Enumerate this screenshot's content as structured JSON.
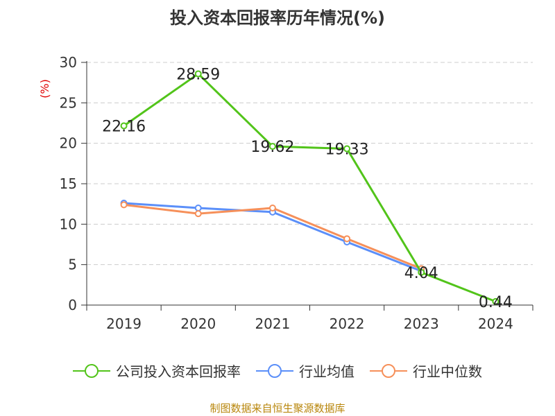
{
  "chart_data": {
    "type": "line",
    "title": "投入资本回报率历年情况(%)",
    "ylabel": "(%)",
    "xlabel": "",
    "categories": [
      "2019",
      "2020",
      "2021",
      "2022",
      "2023",
      "2024"
    ],
    "ylim": [
      0,
      30
    ],
    "yticks": [
      0,
      5,
      10,
      15,
      20,
      25,
      30
    ],
    "grid": true,
    "legend_position": "bottom",
    "series": [
      {
        "name": "公司投入资本回报率",
        "color": "#52c41a",
        "values": [
          22.16,
          28.59,
          19.62,
          19.33,
          4.04,
          0.44
        ],
        "labels": [
          "22.16",
          "28.59",
          "19.62",
          "19.33",
          "4.04",
          "0.44"
        ]
      },
      {
        "name": "行业均值",
        "color": "#5b8ff9",
        "values": [
          12.6,
          12.0,
          11.5,
          7.8,
          4.2,
          null
        ]
      },
      {
        "name": "行业中位数",
        "color": "#f6905a",
        "values": [
          12.4,
          11.3,
          12.0,
          8.2,
          4.5,
          null
        ]
      }
    ]
  },
  "source": "制图数据来自恒生聚源数据库"
}
